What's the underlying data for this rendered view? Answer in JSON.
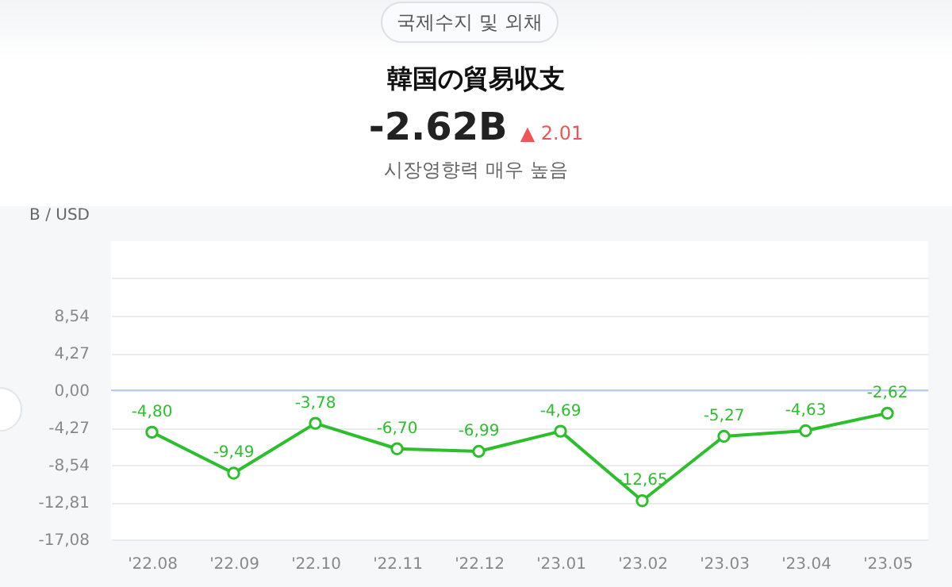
{
  "chart_data": {
    "type": "line",
    "title": "韓国の貿易収支",
    "annotations": [
      "국제수지 및 외채",
      "-2.62B",
      "▲ 2.01",
      "시장영향력 매우 높음"
    ],
    "ylabel": "B / USD",
    "categories": [
      "'22.08",
      "'22.09",
      "'22.10",
      "'22.11",
      "'22.12",
      "'23.01",
      "'23.02",
      "'23.03",
      "'23.04",
      "'23.05"
    ],
    "series": [
      {
        "color": "#2cbf2c",
        "values": [
          -4.8,
          -9.49,
          -3.78,
          -6.7,
          -6.99,
          -4.69,
          -12.65,
          -5.27,
          -4.63,
          -2.62
        ],
        "value_labels": [
          "-4,80",
          "-9,49",
          "-3,78",
          "-6,70",
          "-6,99",
          "-4,69",
          "-12,65",
          "-5,27",
          "-4,63",
          "-2,62"
        ]
      }
    ],
    "ylim": [
      -17.08,
      17.08
    ],
    "yticks": [
      {
        "value": 12.81,
        "label": null
      },
      {
        "value": 8.54,
        "label": "8,54"
      },
      {
        "value": 4.27,
        "label": "4,27"
      },
      {
        "value": 0,
        "label": "0,00"
      },
      {
        "value": -4.27,
        "label": "-4,27"
      },
      {
        "value": -8.54,
        "label": "-8,54"
      },
      {
        "value": -12.81,
        "label": "-12,81"
      },
      {
        "value": -17.08,
        "label": "-17,08"
      }
    ],
    "ref_lines": [
      {
        "axis": "y",
        "value": 0,
        "color": "#b3cdf2"
      }
    ],
    "grid": "y",
    "marker": "circle"
  }
}
